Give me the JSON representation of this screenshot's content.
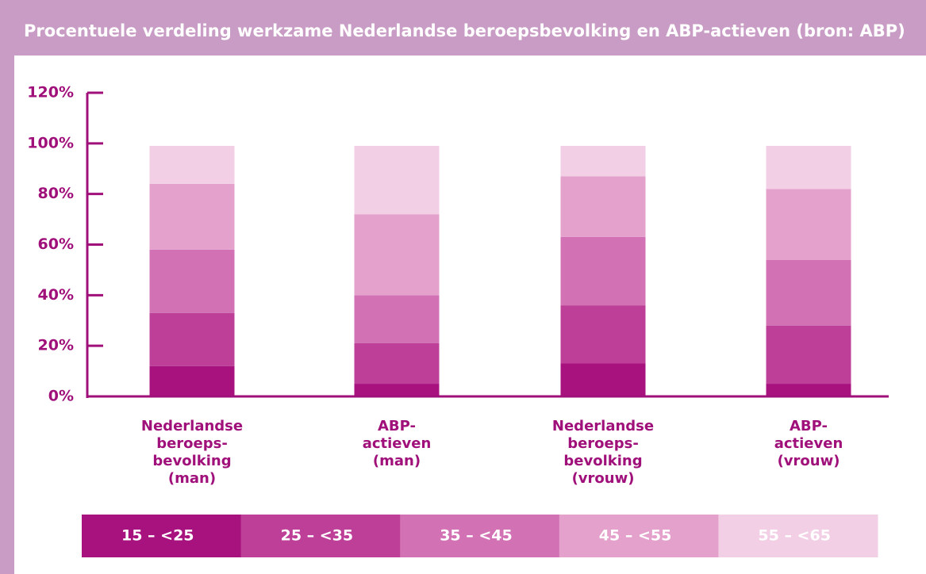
{
  "chart_data": {
    "type": "stacked_bar",
    "title": "Procentuele verdeling werkzame Nederlandse beroepsbevolking en ABP-actieven (bron: ABP)",
    "categories": [
      [
        "Nederlandse",
        "beroeps-",
        "bevolking",
        "(man)"
      ],
      [
        "ABP-",
        "actieven",
        "(man)"
      ],
      [
        "Nederlandse",
        "beroeps-",
        "bevolking",
        "(vrouw)"
      ],
      [
        "ABP-",
        "actieven",
        "(vrouw)"
      ]
    ],
    "series": [
      {
        "name": "15 – <25",
        "color": "#a8127e",
        "values": [
          12,
          5,
          13,
          5
        ]
      },
      {
        "name": "25 – <35",
        "color": "#bd3f98",
        "values": [
          21,
          16,
          23,
          23
        ]
      },
      {
        "name": "35 – <45",
        "color": "#d272b4",
        "values": [
          25,
          19,
          27,
          26
        ]
      },
      {
        "name": "45 – <55",
        "color": "#e3a1cc",
        "values": [
          26,
          32,
          24,
          28
        ]
      },
      {
        "name": "55 – <65",
        "color": "#f2cfe5",
        "values": [
          15,
          27,
          12,
          17
        ]
      }
    ],
    "ylim": [
      0,
      120
    ],
    "yticks": [
      {
        "value": 0,
        "label": "0%"
      },
      {
        "value": 20,
        "label": "20%"
      },
      {
        "value": 40,
        "label": "40%"
      },
      {
        "value": 60,
        "label": "60%"
      },
      {
        "value": 80,
        "label": "80%"
      },
      {
        "value": 100,
        "label": "100%"
      },
      {
        "value": 120,
        "label": "120%"
      }
    ],
    "legend": "bottom"
  }
}
